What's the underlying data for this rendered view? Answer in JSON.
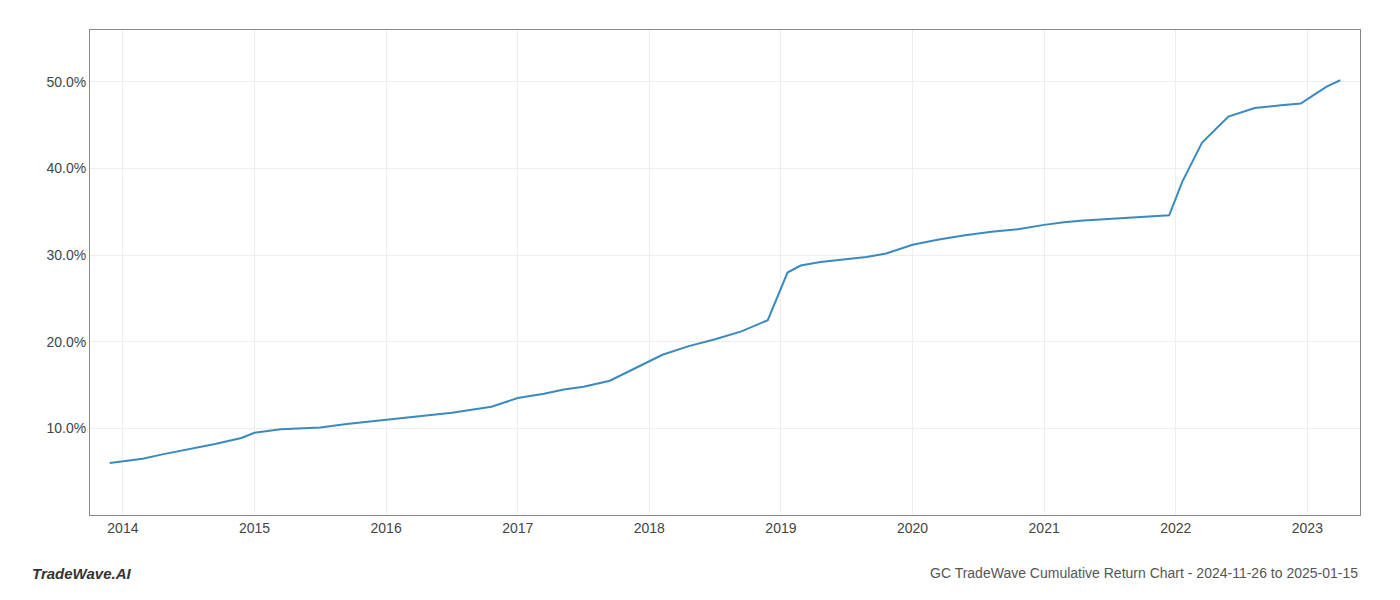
{
  "chart_data": {
    "type": "line",
    "title": "GC TradeWave Cumulative Return Chart - 2024-11-26 to 2025-01-15",
    "annotations": [
      "TradeWave.AI"
    ],
    "x": [
      2013.9,
      2014.0,
      2014.15,
      2014.3,
      2014.5,
      2014.7,
      2014.9,
      2015.0,
      2015.2,
      2015.5,
      2015.7,
      2016.0,
      2016.2,
      2016.5,
      2016.8,
      2017.0,
      2017.2,
      2017.35,
      2017.5,
      2017.7,
      2017.9,
      2018.1,
      2018.3,
      2018.5,
      2018.7,
      2018.9,
      2019.05,
      2019.15,
      2019.3,
      2019.5,
      2019.65,
      2019.8,
      2020.0,
      2020.2,
      2020.4,
      2020.6,
      2020.8,
      2021.0,
      2021.15,
      2021.3,
      2021.5,
      2021.7,
      2021.85,
      2021.95,
      2022.05,
      2022.2,
      2022.4,
      2022.6,
      2022.8,
      2022.95,
      2023.05,
      2023.15,
      2023.25
    ],
    "values": [
      6.0,
      6.2,
      6.5,
      7.0,
      7.6,
      8.2,
      8.9,
      9.5,
      9.9,
      10.1,
      10.5,
      11.0,
      11.3,
      11.8,
      12.5,
      13.5,
      14.0,
      14.5,
      14.8,
      15.5,
      17.0,
      18.5,
      19.5,
      20.3,
      21.2,
      22.5,
      28.0,
      28.8,
      29.2,
      29.5,
      29.8,
      30.2,
      31.2,
      31.8,
      32.3,
      32.7,
      33.0,
      33.5,
      33.8,
      34.0,
      34.2,
      34.4,
      34.5,
      34.6,
      38.5,
      43.0,
      46.0,
      47.0,
      47.3,
      47.5,
      48.5,
      49.5,
      50.2
    ],
    "color": "#3a8abf",
    "xlim": [
      2013.75,
      2023.4
    ],
    "xticks": [
      2014,
      2015,
      2016,
      2017,
      2018,
      2019,
      2020,
      2021,
      2022,
      2023
    ],
    "ylim": [
      0,
      56
    ],
    "yticks": [
      {
        "value": 10.0,
        "label": "10.0%"
      },
      {
        "value": 20.0,
        "label": "20.0%"
      },
      {
        "value": 30.0,
        "label": "30.0%"
      },
      {
        "value": 40.0,
        "label": "40.0%"
      },
      {
        "value": 50.0,
        "label": "50.0%"
      }
    ],
    "grid": true
  }
}
